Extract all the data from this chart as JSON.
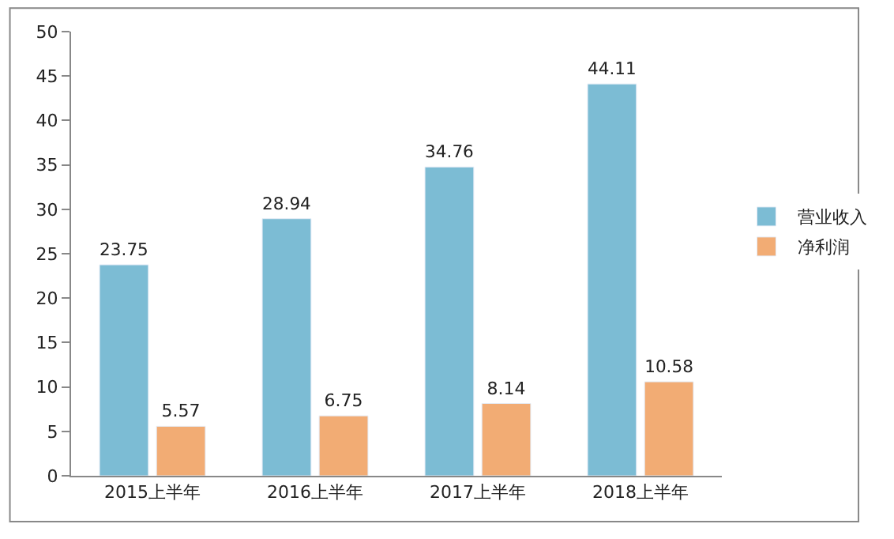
{
  "chart_data": {
    "type": "bar",
    "categories": [
      "2015上半年",
      "2016上半年",
      "2017上半年",
      "2018上半年"
    ],
    "series": [
      {
        "name": "营业收入",
        "color": "#7cbcd4",
        "values": [
          23.75,
          28.94,
          34.76,
          44.11
        ]
      },
      {
        "name": "净利润",
        "color": "#f2ac74",
        "values": [
          5.57,
          6.75,
          8.14,
          10.58
        ]
      }
    ],
    "ylim": [
      0,
      50
    ],
    "yticks": [
      0,
      5,
      10,
      15,
      20,
      25,
      30,
      35,
      40,
      45,
      50
    ],
    "legend": "right",
    "data_labels": true
  }
}
